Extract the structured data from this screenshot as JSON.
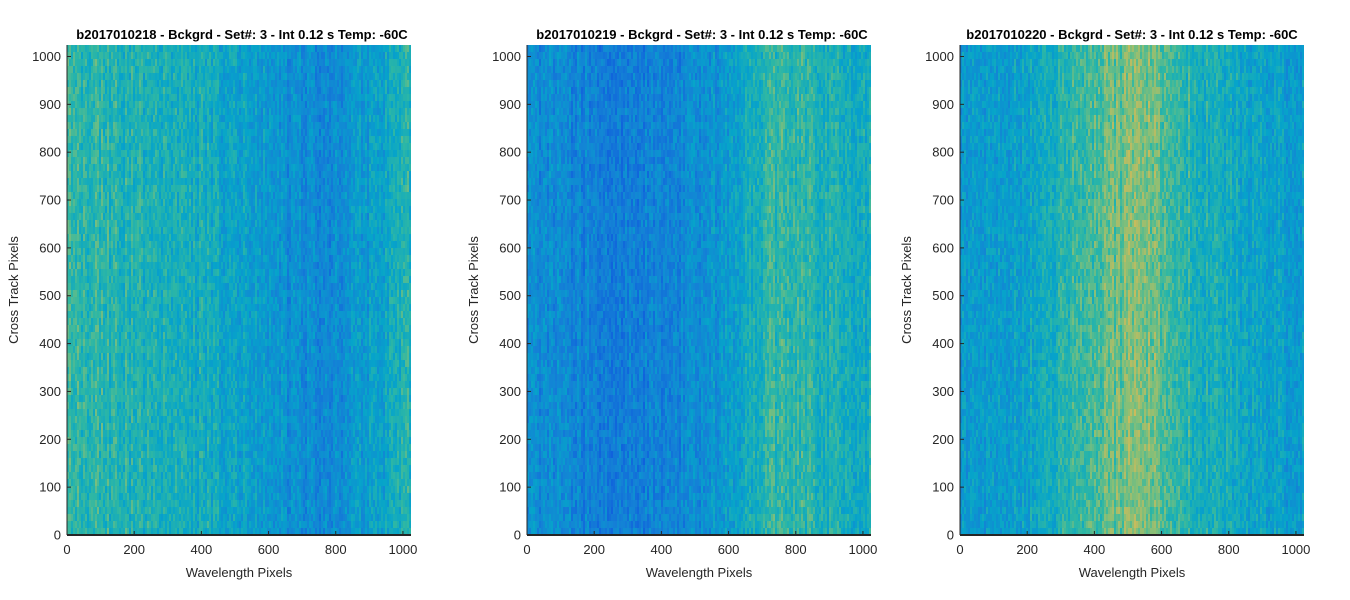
{
  "chart_data": [
    {
      "type": "heatmap",
      "title": "b2017010218 - Bckgrd - Set#: 3 - Int 0.12 s Temp: -60C",
      "xlabel": "Wavelength Pixels",
      "ylabel": "Cross Track Pixels",
      "xlim": [
        0,
        1024
      ],
      "ylim": [
        0,
        1024
      ],
      "xticks": [
        0,
        200,
        400,
        600,
        800,
        1000
      ],
      "yticks": [
        0,
        100,
        200,
        300,
        400,
        500,
        600,
        700,
        800,
        900,
        1000
      ],
      "colormap": "parula",
      "column_profile": [
        {
          "x": 0,
          "level": 0.58
        },
        {
          "x": 100,
          "level": 0.56
        },
        {
          "x": 200,
          "level": 0.52
        },
        {
          "x": 300,
          "level": 0.5
        },
        {
          "x": 400,
          "level": 0.5
        },
        {
          "x": 500,
          "level": 0.46
        },
        {
          "x": 600,
          "level": 0.4
        },
        {
          "x": 700,
          "level": 0.34
        },
        {
          "x": 800,
          "level": 0.34
        },
        {
          "x": 900,
          "level": 0.42
        },
        {
          "x": 1024,
          "level": 0.55
        }
      ]
    },
    {
      "type": "heatmap",
      "title": "b2017010219 - Bckgrd - Set#: 3 - Int 0.12 s Temp: -60C",
      "xlabel": "Wavelength Pixels",
      "ylabel": "Cross Track Pixels",
      "xlim": [
        0,
        1024
      ],
      "ylim": [
        0,
        1024
      ],
      "xticks": [
        0,
        200,
        400,
        600,
        800,
        1000
      ],
      "yticks": [
        0,
        100,
        200,
        300,
        400,
        500,
        600,
        700,
        800,
        900,
        1000
      ],
      "colormap": "parula",
      "column_profile": [
        {
          "x": 0,
          "level": 0.36
        },
        {
          "x": 100,
          "level": 0.33
        },
        {
          "x": 200,
          "level": 0.3
        },
        {
          "x": 300,
          "level": 0.29
        },
        {
          "x": 400,
          "level": 0.3
        },
        {
          "x": 500,
          "level": 0.35
        },
        {
          "x": 600,
          "level": 0.4
        },
        {
          "x": 700,
          "level": 0.55
        },
        {
          "x": 800,
          "level": 0.58
        },
        {
          "x": 900,
          "level": 0.52
        },
        {
          "x": 1024,
          "level": 0.5
        }
      ]
    },
    {
      "type": "heatmap",
      "title": "b2017010220 - Bckgrd - Set#: 3 - Int 0.12 s Temp: -60C",
      "xlabel": "Wavelength Pixels",
      "ylabel": "Cross Track Pixels",
      "xlim": [
        0,
        1024
      ],
      "ylim": [
        0,
        1024
      ],
      "xticks": [
        0,
        200,
        400,
        600,
        800,
        1000
      ],
      "yticks": [
        0,
        100,
        200,
        300,
        400,
        500,
        600,
        700,
        800,
        900,
        1000
      ],
      "colormap": "parula",
      "column_profile": [
        {
          "x": 0,
          "level": 0.4
        },
        {
          "x": 100,
          "level": 0.42
        },
        {
          "x": 200,
          "level": 0.46
        },
        {
          "x": 300,
          "level": 0.52
        },
        {
          "x": 400,
          "level": 0.62
        },
        {
          "x": 500,
          "level": 0.68
        },
        {
          "x": 550,
          "level": 0.7
        },
        {
          "x": 600,
          "level": 0.64
        },
        {
          "x": 700,
          "level": 0.54
        },
        {
          "x": 800,
          "level": 0.48
        },
        {
          "x": 900,
          "level": 0.45
        },
        {
          "x": 1024,
          "level": 0.42
        }
      ]
    }
  ]
}
